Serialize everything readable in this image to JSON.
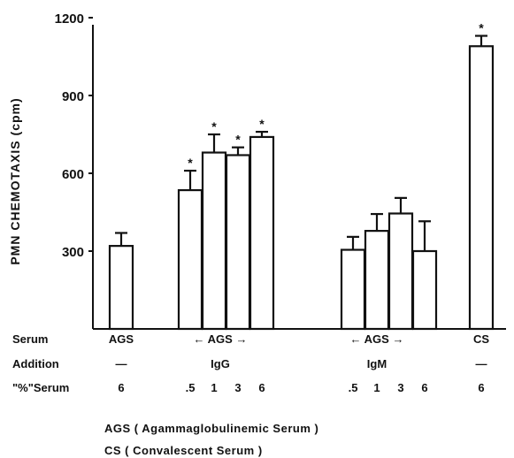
{
  "chart_data": {
    "type": "bar",
    "ylabel": "PMN CHEMOTAXIS (cpm)",
    "ylim": [
      0,
      1200
    ],
    "yticks": [
      300,
      600,
      900,
      1200
    ],
    "grid": false,
    "bars": [
      {
        "group": 0,
        "pct": "6",
        "value": 320,
        "error": 50,
        "sig": false
      },
      {
        "group": 1,
        "pct": ".5",
        "value": 535,
        "error": 75,
        "sig": true
      },
      {
        "group": 1,
        "pct": "1",
        "value": 680,
        "error": 70,
        "sig": true
      },
      {
        "group": 1,
        "pct": "3",
        "value": 670,
        "error": 30,
        "sig": true
      },
      {
        "group": 1,
        "pct": "6",
        "value": 740,
        "error": 20,
        "sig": true
      },
      {
        "group": 2,
        "pct": ".5",
        "value": 305,
        "error": 50,
        "sig": false
      },
      {
        "group": 2,
        "pct": "1",
        "value": 378,
        "error": 65,
        "sig": false
      },
      {
        "group": 2,
        "pct": "3",
        "value": 445,
        "error": 60,
        "sig": false
      },
      {
        "group": 2,
        "pct": "6",
        "value": 300,
        "error": 115,
        "sig": false
      },
      {
        "group": 3,
        "pct": "6",
        "value": 1090,
        "error": 40,
        "sig": true
      }
    ],
    "sig_marker": "*",
    "row_labels": {
      "serum": "Serum",
      "addition": "Addition",
      "pct_serum": "\"%\"Serum"
    },
    "groups": [
      {
        "serum": "AGS",
        "addition": "—"
      },
      {
        "serum": "← AGS →",
        "addition": "IgG"
      },
      {
        "serum": "← AGS →",
        "addition": "IgM"
      },
      {
        "serum": "CS",
        "addition": "—"
      }
    ]
  },
  "legend_notes": [
    "AGS  ( Agammaglobulinemic   Serum )",
    "CS  ( Convalescent   Serum )"
  ]
}
